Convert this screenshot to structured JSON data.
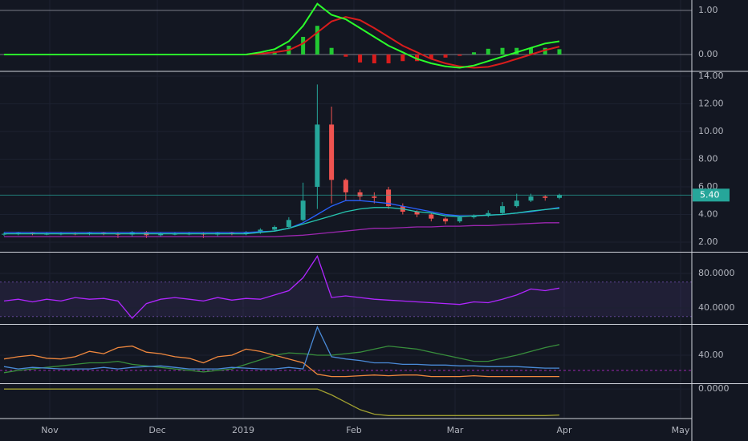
{
  "chart_data": [
    {
      "type": "line",
      "ylim": [
        -0.364,
        1.236
      ],
      "yticks": [
        {
          "value": 1,
          "label": "1.00"
        },
        {
          "value": 0,
          "label": "0.00"
        }
      ],
      "series": [
        {
          "name": "histogram",
          "kind": "bar",
          "color": "#22c932",
          "negative_color": "#d81c1c",
          "values": [
            0,
            0,
            0,
            0,
            0,
            0,
            0,
            0,
            0,
            0,
            0,
            0,
            0,
            0,
            0,
            0,
            0,
            0,
            0.03,
            0.07,
            0.2,
            0.4,
            0.65,
            0.15,
            -0.05,
            -0.18,
            -0.2,
            -0.2,
            -0.15,
            -0.15,
            -0.1,
            -0.07,
            -0.03,
            0.05,
            0.13,
            0.15,
            0.15,
            0.15,
            0.15,
            0.12
          ]
        },
        {
          "name": "signal",
          "color": "#d81c1c",
          "values": [
            0,
            0,
            0,
            0,
            0,
            0,
            0,
            0,
            0,
            0,
            0,
            0,
            0,
            0,
            0,
            0,
            0,
            0,
            0.02,
            0.05,
            0.1,
            0.25,
            0.5,
            0.75,
            0.85,
            0.78,
            0.6,
            0.4,
            0.2,
            0.05,
            -0.1,
            -0.2,
            -0.27,
            -0.3,
            -0.28,
            -0.2,
            -0.1,
            0,
            0.1,
            0.18
          ]
        },
        {
          "name": "macd",
          "color": "#2bff2b",
          "values": [
            0,
            0,
            0,
            0,
            0,
            0,
            0,
            0,
            0,
            0,
            0,
            0,
            0,
            0,
            0,
            0,
            0,
            0,
            0.05,
            0.12,
            0.3,
            0.65,
            1.15,
            0.9,
            0.8,
            0.6,
            0.4,
            0.2,
            0.05,
            -0.1,
            -0.2,
            -0.27,
            -0.3,
            -0.25,
            -0.15,
            -0.05,
            0.05,
            0.15,
            0.25,
            0.3
          ]
        }
      ]
    },
    {
      "type": "candlestick",
      "ylim": [
        1.36,
        14.29
      ],
      "yticks": [
        {
          "value": 14,
          "label": "14.00"
        },
        {
          "value": 12,
          "label": "12.00"
        },
        {
          "value": 10,
          "label": "10.00"
        },
        {
          "value": 8,
          "label": "8.00"
        },
        {
          "value": 6,
          "label": "6.00"
        },
        {
          "value": 4,
          "label": "4.00"
        },
        {
          "value": 2,
          "label": "2.00"
        }
      ],
      "up_color": "#26a69a",
      "down_color": "#ef5350",
      "open": [
        2.55,
        2.6,
        2.65,
        2.6,
        2.6,
        2.62,
        2.6,
        2.65,
        2.6,
        2.55,
        2.7,
        2.5,
        2.6,
        2.6,
        2.62,
        2.55,
        2.65,
        2.6,
        2.7,
        2.9,
        3.1,
        3.6,
        6.0,
        10.5,
        6.5,
        5.6,
        5.3,
        5.8,
        4.6,
        4.2,
        4.0,
        3.7,
        3.5,
        3.8,
        3.9,
        4.1,
        4.6,
        5.0,
        5.3,
        5.2
      ],
      "high": [
        2.7,
        2.75,
        2.7,
        2.7,
        2.72,
        2.7,
        2.75,
        2.75,
        2.7,
        2.8,
        2.8,
        2.7,
        2.7,
        2.75,
        2.7,
        2.75,
        2.75,
        2.8,
        3.0,
        3.2,
        3.8,
        6.3,
        13.4,
        11.8,
        6.6,
        5.8,
        5.6,
        6.0,
        4.8,
        4.3,
        4.1,
        3.8,
        3.9,
        4.0,
        4.3,
        4.9,
        5.5,
        5.5,
        5.4,
        5.5
      ],
      "low": [
        2.45,
        2.5,
        2.5,
        2.5,
        2.5,
        2.5,
        2.5,
        2.5,
        2.3,
        2.4,
        2.3,
        2.4,
        2.5,
        2.5,
        2.3,
        2.4,
        2.5,
        2.5,
        2.6,
        2.8,
        3.0,
        3.5,
        4.4,
        4.8,
        5.0,
        5.0,
        4.8,
        4.4,
        4.0,
        3.8,
        3.5,
        3.3,
        3.4,
        3.7,
        3.8,
        4.0,
        4.5,
        4.9,
        5.0,
        5.1
      ],
      "close": [
        2.6,
        2.65,
        2.6,
        2.6,
        2.62,
        2.6,
        2.65,
        2.6,
        2.55,
        2.7,
        2.5,
        2.6,
        2.6,
        2.62,
        2.55,
        2.65,
        2.6,
        2.7,
        2.9,
        3.1,
        3.6,
        5.0,
        10.5,
        6.5,
        5.6,
        5.3,
        5.2,
        4.6,
        4.2,
        4.0,
        3.7,
        3.5,
        3.8,
        3.9,
        4.1,
        4.6,
        5.0,
        5.3,
        5.2,
        5.4
      ],
      "series": [
        {
          "name": "ma-slow",
          "color": "#9c27b0",
          "values": [
            2.4,
            2.4,
            2.4,
            2.4,
            2.4,
            2.4,
            2.4,
            2.4,
            2.4,
            2.4,
            2.4,
            2.4,
            2.4,
            2.4,
            2.4,
            2.4,
            2.4,
            2.4,
            2.4,
            2.4,
            2.45,
            2.5,
            2.6,
            2.7,
            2.8,
            2.9,
            3.0,
            3.0,
            3.05,
            3.1,
            3.1,
            3.15,
            3.15,
            3.2,
            3.2,
            3.25,
            3.3,
            3.35,
            3.4,
            3.4
          ]
        },
        {
          "name": "ma-mid",
          "color": "#2962ff",
          "values": [
            2.7,
            2.7,
            2.7,
            2.7,
            2.7,
            2.7,
            2.7,
            2.7,
            2.7,
            2.7,
            2.7,
            2.7,
            2.7,
            2.7,
            2.7,
            2.7,
            2.7,
            2.7,
            2.75,
            2.8,
            3.0,
            3.4,
            4.0,
            4.6,
            5.0,
            5.0,
            4.9,
            4.8,
            4.6,
            4.4,
            4.2,
            4.0,
            3.9,
            3.9,
            3.95,
            4.0,
            4.1,
            4.2,
            4.35,
            4.5
          ]
        },
        {
          "name": "ma-fast",
          "color": "#26c6b0",
          "values": [
            2.6,
            2.6,
            2.6,
            2.6,
            2.6,
            2.6,
            2.6,
            2.6,
            2.6,
            2.6,
            2.6,
            2.6,
            2.6,
            2.6,
            2.6,
            2.6,
            2.6,
            2.6,
            2.7,
            2.8,
            3.0,
            3.3,
            3.6,
            3.9,
            4.2,
            4.4,
            4.5,
            4.5,
            4.4,
            4.2,
            4.1,
            3.9,
            3.85,
            3.9,
            3.95,
            4.0,
            4.1,
            4.25,
            4.35,
            4.45
          ]
        }
      ],
      "last_value": {
        "value": 5.4,
        "label": "5.40"
      }
    },
    {
      "type": "line",
      "ylim": [
        22.3,
        103.3
      ],
      "yticks": [
        {
          "value": 80,
          "label": "80.0000"
        },
        {
          "value": 40,
          "label": "40.0000"
        }
      ],
      "band": [
        30,
        70
      ],
      "band_color": "#7e57c2",
      "series": [
        {
          "name": "rsi",
          "color": "#b026ff",
          "values": [
            48,
            50,
            47,
            50,
            48,
            52,
            50,
            51,
            48,
            28,
            45,
            50,
            52,
            50,
            48,
            52,
            49,
            51,
            50,
            55,
            60,
            75,
            100,
            52,
            54,
            52,
            50,
            49,
            48,
            47,
            46,
            45,
            44,
            47,
            46,
            50,
            55,
            62,
            60,
            63
          ]
        }
      ]
    },
    {
      "type": "line",
      "ylim": [
        4.2,
        78.9
      ],
      "yticks": [
        {
          "value": 40,
          "label": "40.00"
        }
      ],
      "threshold": 20,
      "threshold_color": "#9c27b0",
      "series": [
        {
          "name": "adx",
          "color": "#388e3c",
          "values": [
            17,
            20,
            22,
            24,
            26,
            28,
            30,
            30,
            32,
            28,
            26,
            24,
            22,
            20,
            18,
            20,
            22,
            28,
            34,
            40,
            43,
            42,
            40,
            40,
            42,
            44,
            48,
            52,
            50,
            48,
            44,
            40,
            36,
            32,
            32,
            36,
            40,
            45,
            50,
            54
          ]
        },
        {
          "name": "minus-di",
          "color": "#f0883e",
          "values": [
            35,
            38,
            40,
            36,
            35,
            38,
            45,
            42,
            50,
            52,
            44,
            42,
            38,
            36,
            30,
            38,
            40,
            48,
            45,
            40,
            35,
            30,
            15,
            12,
            12,
            13,
            14,
            13,
            14,
            14,
            12,
            12,
            12,
            13,
            12,
            12,
            12,
            12,
            12,
            12
          ]
        },
        {
          "name": "plus-di",
          "color": "#4a8bd8",
          "values": [
            25,
            22,
            24,
            23,
            22,
            22,
            22,
            24,
            22,
            24,
            25,
            26,
            24,
            22,
            22,
            22,
            24,
            23,
            22,
            22,
            24,
            22,
            77,
            38,
            35,
            33,
            30,
            30,
            28,
            28,
            27,
            27,
            26,
            26,
            25,
            25,
            25,
            24,
            23,
            23
          ]
        }
      ]
    },
    {
      "type": "line",
      "ylim": [
        -1.0,
        0.14
      ],
      "yticks": [
        {
          "value": 0,
          "label": "0.0000"
        }
      ],
      "series": [
        {
          "name": "oscillator",
          "color": "#a1a030",
          "values": [
            0,
            0,
            0,
            0,
            0,
            0,
            0,
            0,
            0,
            0,
            0,
            0,
            0,
            0,
            0,
            0,
            0,
            0,
            0,
            0,
            0,
            0,
            0,
            -0.2,
            -0.45,
            -0.7,
            -0.85,
            -0.9,
            -0.9,
            -0.9,
            -0.9,
            -0.9,
            -0.9,
            -0.9,
            -0.9,
            -0.9,
            -0.9,
            -0.9,
            -0.9,
            -0.88
          ]
        }
      ]
    }
  ],
  "x_axis": {
    "labels": [
      "Nov",
      "Dec",
      "2019",
      "Feb",
      "Mar",
      "Apr",
      "May"
    ]
  }
}
